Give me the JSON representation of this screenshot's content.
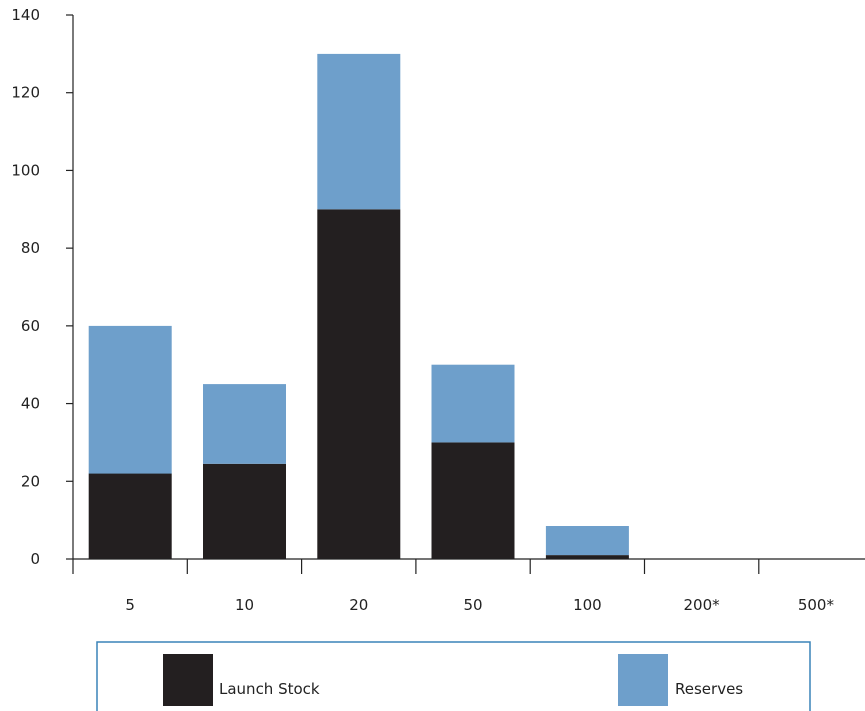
{
  "chart_data": {
    "type": "bar",
    "stacked": true,
    "title": "",
    "xlabel": "",
    "ylabel": "",
    "categories": [
      "5",
      "10",
      "20",
      "50",
      "100",
      "200*",
      "500*"
    ],
    "series": [
      {
        "name": "Launch Stock",
        "color": "#231f20",
        "values": [
          22,
          24.5,
          90,
          30,
          1,
          0,
          0
        ]
      },
      {
        "name": "Reserves",
        "color": "#6e9fcb",
        "values": [
          38,
          20.5,
          40,
          20,
          7.5,
          0,
          0
        ]
      }
    ],
    "ylim": [
      0,
      140
    ],
    "yticks": [
      0,
      20,
      40,
      60,
      80,
      100,
      120,
      140
    ],
    "grid": false,
    "legend_position": "bottom"
  }
}
